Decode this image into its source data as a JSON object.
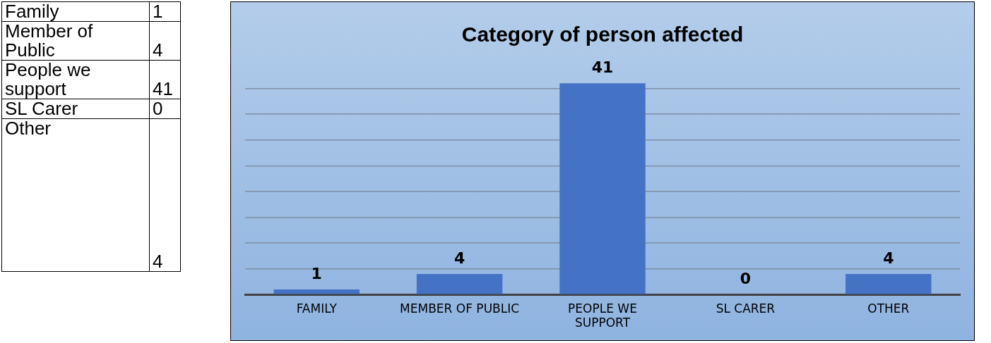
{
  "chart_data": [
    {
      "type": "other",
      "categories": [
        "Family",
        "Member of Public",
        "People we support",
        "SL Carer",
        "Other"
      ],
      "values": [
        1,
        4,
        41,
        0,
        4
      ],
      "data_labels": true
    },
    {
      "type": "bar",
      "title": "Category of person affected",
      "categories": [
        "FAMILY",
        "MEMBER OF PUBLIC",
        "PEOPLE WE SUPPORT",
        "SL CARER",
        "OTHER"
      ],
      "values": [
        1,
        4,
        41,
        0,
        4
      ],
      "color": "#4472c4",
      "grid": "y",
      "tick_labels": "x",
      "data_labels": true
    }
  ]
}
